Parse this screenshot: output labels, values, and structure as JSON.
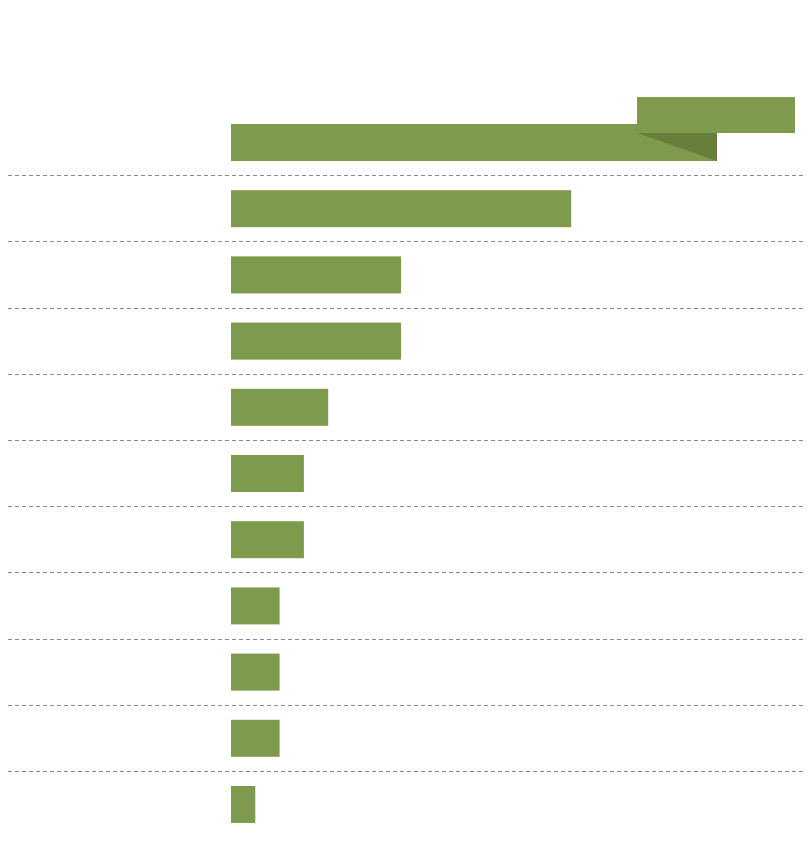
{
  "chart_data": {
    "type": "bar",
    "orientation": "horizontal",
    "title": "",
    "xlabel": "",
    "ylabel": "",
    "categories": [
      "",
      "",
      "",
      "",
      "",
      "",
      "",
      "",
      "",
      "",
      ""
    ],
    "values": [
      20,
      14,
      7,
      7,
      4,
      3,
      3,
      2,
      2,
      2,
      1
    ],
    "xlim": [
      0,
      20
    ],
    "grid": false,
    "row_separators": "dashed",
    "legend": "none",
    "highlight": {
      "index": 0,
      "style": "ribbon-callout",
      "text": ""
    },
    "colors": {
      "bar": "#7e9a4c",
      "callout_fold": "#677f3b",
      "separator": "#8a8a8a",
      "background": "#ffffff"
    }
  }
}
